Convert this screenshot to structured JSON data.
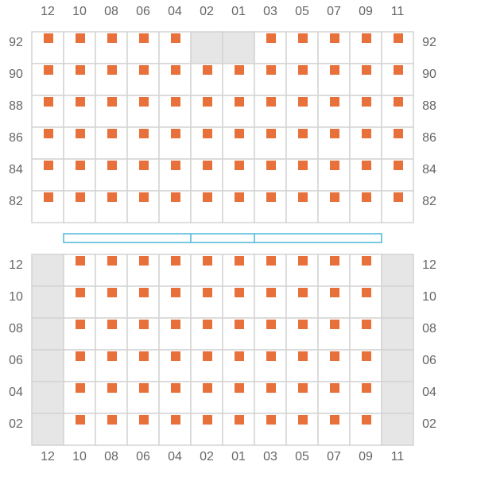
{
  "columns": [
    "12",
    "10",
    "08",
    "06",
    "04",
    "02",
    "01",
    "03",
    "05",
    "07",
    "09",
    "11"
  ],
  "top_rows": [
    "92",
    "90",
    "88",
    "86",
    "84",
    "82"
  ],
  "bottom_rows": [
    "12",
    "10",
    "08",
    "06",
    "04",
    "02"
  ]
}
